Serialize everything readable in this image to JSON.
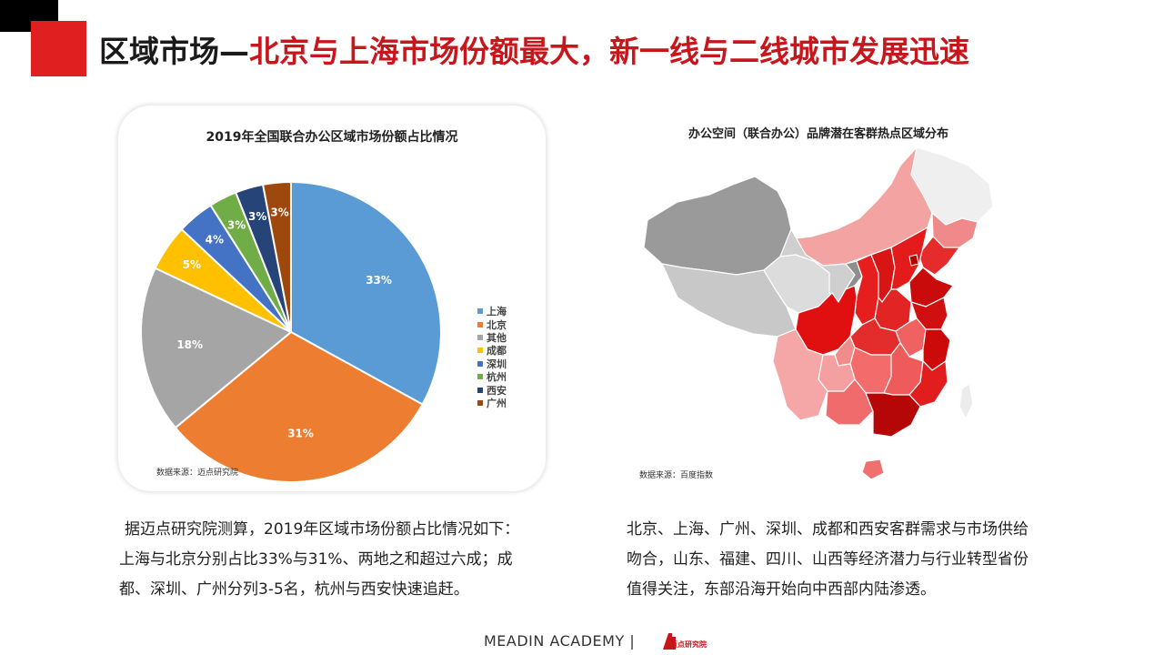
{
  "title": {
    "prefix": "区域市场—",
    "highlight": "北京与上海市场份额最大，新一线与二线城市发展迅速"
  },
  "pie_section": {
    "source": "数据来源：迈点研究院"
  },
  "map_section": {
    "title": "办公空间（联合办公）品牌潜在客群热点区域分布",
    "source": "数据来源：百度指数"
  },
  "chart_data": {
    "type": "pie",
    "title": "2019年全国联合办公区域市场份额占比情况",
    "legend_position": "right",
    "categories": [
      "上海",
      "北京",
      "其他",
      "成都",
      "深圳",
      "杭州",
      "西安",
      "广州"
    ],
    "values": [
      33,
      31,
      18,
      5,
      4,
      3,
      3,
      3
    ],
    "labels": [
      "33%",
      "31%",
      "18%",
      "5%",
      "4%",
      "3%",
      "3%",
      "3%"
    ],
    "colors": [
      "#5b9bd5",
      "#ed7d31",
      "#a5a5a5",
      "#ffc000",
      "#4472c4",
      "#70ad47",
      "#264478",
      "#9e480e"
    ]
  },
  "paragraphs": {
    "left": "据迈点研究院测算，2019年区域市场份额占比情况如下：上海与北京分别占比33%与31%、两地之和超过六成；成都、深圳、广州分列3-5名，杭州与西安快速追赶。",
    "right": "北京、上海、广州、深圳、成都和西安客群需求与市场供给吻合，山东、福建、四川、山西等经济潜力与行业转型省份值得关注，东部沿海开始向中西部内陆渗透。"
  },
  "footer": {
    "brand": "MEADIN ACADEMY |",
    "logo_text": "迈点研究院"
  }
}
